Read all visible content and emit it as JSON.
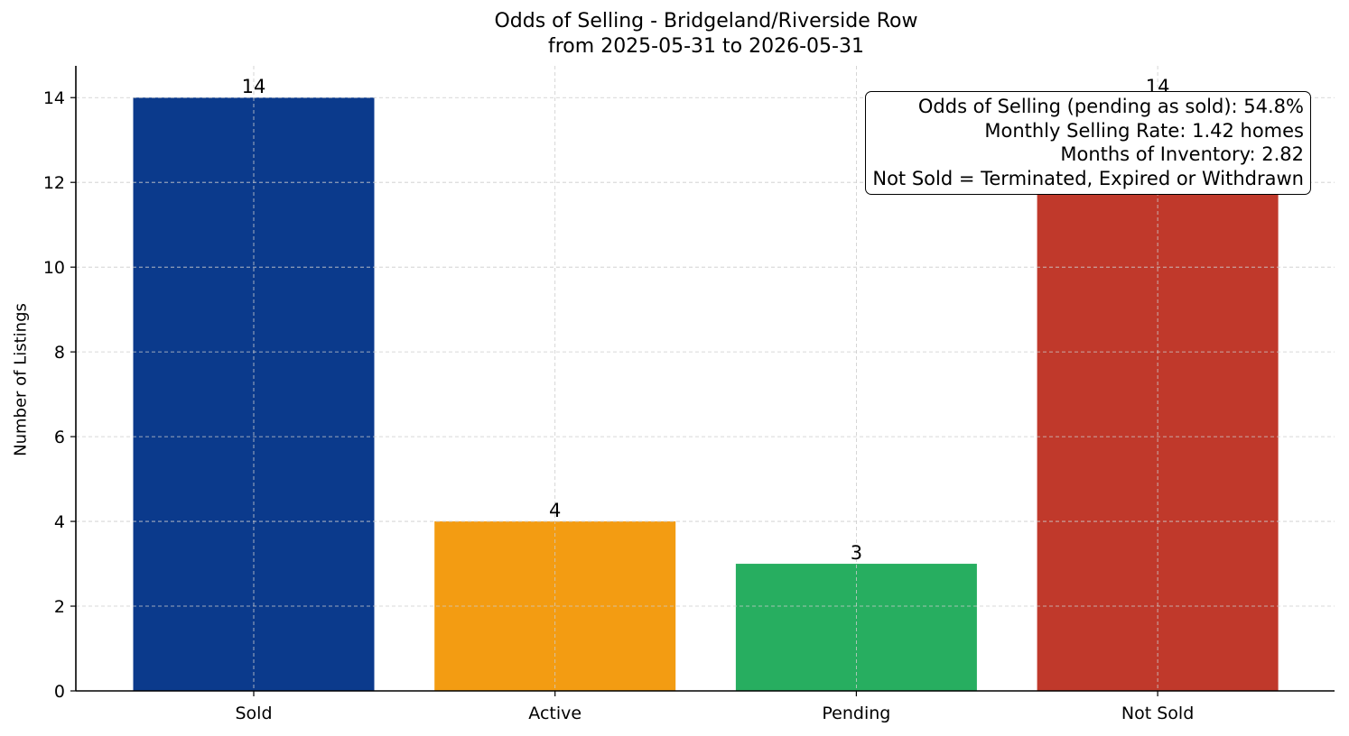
{
  "chart_data": {
    "type": "bar",
    "title": "Odds of Selling - Bridgeland/Riverside Row",
    "subtitle": "from 2025-05-31 to 2026-05-31",
    "xlabel": "",
    "ylabel": "Number of Listings",
    "categories": [
      "Sold",
      "Active",
      "Pending",
      "Not Sold"
    ],
    "values": [
      14,
      4,
      3,
      14
    ],
    "data_labels": [
      "14",
      "4",
      "3",
      "14"
    ],
    "colors": [
      "#0b3a8c",
      "#f39c12",
      "#27ae60",
      "#c0392b"
    ],
    "ylim": [
      0,
      14.75
    ],
    "yticks": [
      0,
      2,
      4,
      6,
      8,
      10,
      12,
      14
    ],
    "grid": true,
    "annotations": [
      "Odds of Selling (pending as sold): 54.8%",
      "Monthly Selling Rate: 1.42 homes",
      "Months of Inventory: 2.82",
      "Not Sold = Terminated, Expired or Withdrawn"
    ],
    "annotation_placement": "top-right"
  }
}
